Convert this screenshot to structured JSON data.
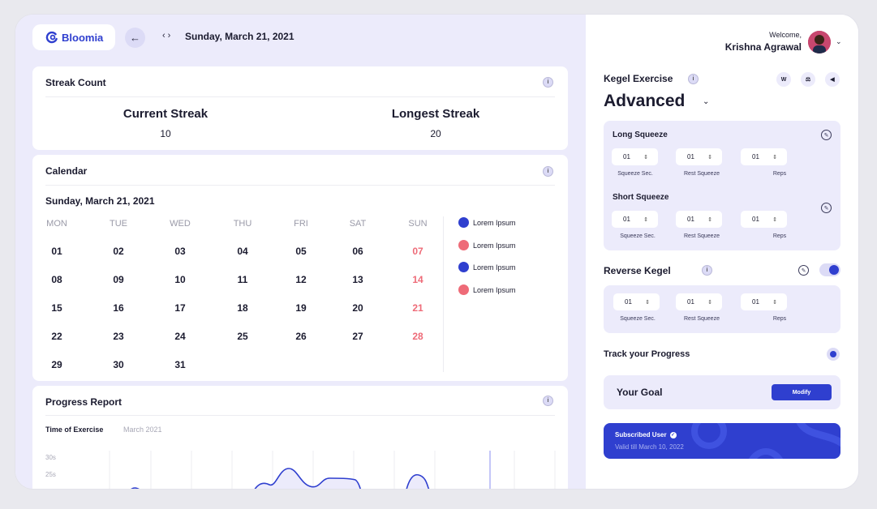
{
  "header": {
    "brand": "Bloomia",
    "back_icon": "arrow-left-icon",
    "nav_arrows": "‹ ›",
    "date": "Sunday, March 21, 2021"
  },
  "streak": {
    "title": "Streak Count",
    "current_label": "Current Streak",
    "current_value": "10",
    "longest_label": "Longest Streak",
    "longest_value": "20"
  },
  "calendar": {
    "title": "Calendar",
    "date": "Sunday, March 21, 2021",
    "weekdays": [
      "MON",
      "TUE",
      "WED",
      "THU",
      "FRI",
      "SAT",
      "SUN"
    ],
    "weeks": [
      [
        "01",
        "02",
        "03",
        "04",
        "05",
        "06",
        "07"
      ],
      [
        "08",
        "09",
        "10",
        "11",
        "12",
        "13",
        "14"
      ],
      [
        "15",
        "16",
        "17",
        "18",
        "19",
        "20",
        "21"
      ],
      [
        "22",
        "23",
        "24",
        "25",
        "26",
        "27",
        "28"
      ],
      [
        "29",
        "30",
        "31",
        "",
        "",
        "",
        ""
      ]
    ],
    "legend": [
      {
        "label": "Lorem Ipsum",
        "color": "#2f3fcf"
      },
      {
        "label": "Lorem Ipsum",
        "color": "#ee6b78"
      },
      {
        "label": "Lorem Ipsum",
        "color": "#2f3fcf"
      },
      {
        "label": "Lorem Ipsum",
        "color": "#ee6b78"
      }
    ],
    "sunday_color": "#ee6b78"
  },
  "progress": {
    "title": "Progress Report",
    "subtitle": "Time of Exercise",
    "month": "March 2021",
    "y_ticks": [
      "30s",
      "25s"
    ]
  },
  "user": {
    "welcome": "Welcome,",
    "name": "Krishna Agrawal"
  },
  "kegel": {
    "title": "Kegel Exercise",
    "icons": [
      "W",
      "scale-icon",
      "speaker-icon"
    ],
    "level": "Advanced",
    "long_squeeze": {
      "label": "Long Squeeze",
      "fields": [
        {
          "value": "01",
          "caption": "Squeeze Sec."
        },
        {
          "value": "01",
          "caption": "Rest Squeeze"
        },
        {
          "value": "01",
          "caption": "Reps"
        }
      ]
    },
    "short_squeeze": {
      "label": "Short Squeeze",
      "fields": [
        {
          "value": "01",
          "caption": "Squeeze Sec."
        },
        {
          "value": "01",
          "caption": "Rest Squeeze"
        },
        {
          "value": "01",
          "caption": "Reps"
        }
      ]
    }
  },
  "reverse_kegel": {
    "title": "Reverse Kegel",
    "enabled": true,
    "fields": [
      {
        "value": "01",
        "caption": "Squeeze Sec."
      },
      {
        "value": "01",
        "caption": "Rest Squeeze"
      },
      {
        "value": "01",
        "caption": "Reps"
      }
    ]
  },
  "track": {
    "title": "Track your Progress",
    "goal_label": "Your Goal",
    "modify_label": "Modify"
  },
  "subscription": {
    "title": "Subscribed User",
    "valid": "Valid till March 10, 2022"
  },
  "colors": {
    "accent": "#2f3fcf",
    "panel_bg": "#ecebfb",
    "sunday": "#ee6b78"
  }
}
